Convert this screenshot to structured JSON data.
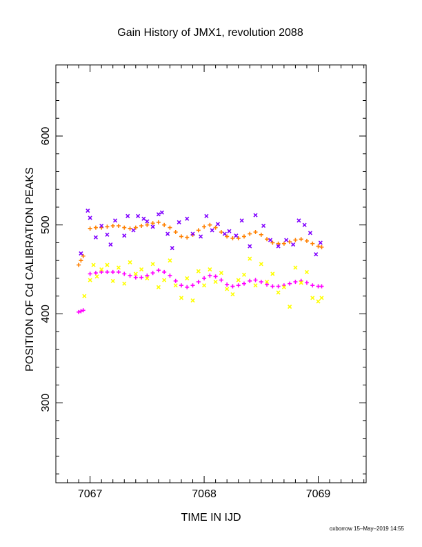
{
  "chart_data": {
    "type": "scatter",
    "title": "Gain History of JMX1, revolution 2088",
    "xlabel": "TIME IN IJD",
    "ylabel": "POSITION OF Cd CALIBRATION PEAKS",
    "xlim": [
      7066.7,
      7069.42
    ],
    "ylim": [
      210,
      680
    ],
    "xticks": [
      "7067",
      "7068",
      "7069"
    ],
    "yticks": [
      "300",
      "400",
      "500",
      "600"
    ],
    "grid": false,
    "legend": "none",
    "x_range": [
      6.91,
      7.05
    ],
    "series": [
      {
        "color": "#ff8000",
        "marker": "plus",
        "x": [
          7066.9,
          7066.92,
          7066.94,
          7067.0,
          7067.05,
          7067.1,
          7067.15,
          7067.2,
          7067.25,
          7067.3,
          7067.35,
          7067.4,
          7067.45,
          7067.5,
          7067.55,
          7067.6,
          7067.65,
          7067.7,
          7067.75,
          7067.8,
          7067.85,
          7067.9,
          7067.95,
          7068.0,
          7068.05,
          7068.1,
          7068.15,
          7068.2,
          7068.25,
          7068.3,
          7068.35,
          7068.4,
          7068.45,
          7068.5,
          7068.55,
          7068.6,
          7068.65,
          7068.7,
          7068.75,
          7068.8,
          7068.85,
          7068.9,
          7068.95,
          7069.0,
          7069.03
        ],
        "y": [
          455,
          460,
          465,
          496,
          497,
          497,
          498,
          499,
          499,
          497,
          496,
          497,
          499,
          500,
          502,
          503,
          500,
          497,
          492,
          487,
          486,
          489,
          494,
          498,
          500,
          497,
          492,
          487,
          485,
          485,
          487,
          490,
          492,
          489,
          484,
          480,
          479,
          479,
          481,
          483,
          484,
          482,
          479,
          476,
          475
        ]
      },
      {
        "color": "#ff00ff",
        "marker": "plus",
        "x": [
          7066.9,
          7066.92,
          7066.94,
          7067.0,
          7067.05,
          7067.1,
          7067.15,
          7067.2,
          7067.25,
          7067.3,
          7067.35,
          7067.4,
          7067.45,
          7067.5,
          7067.55,
          7067.6,
          7067.65,
          7067.7,
          7067.75,
          7067.8,
          7067.85,
          7067.9,
          7067.95,
          7068.0,
          7068.05,
          7068.1,
          7068.15,
          7068.2,
          7068.25,
          7068.3,
          7068.35,
          7068.4,
          7068.45,
          7068.5,
          7068.55,
          7068.6,
          7068.65,
          7068.7,
          7068.75,
          7068.8,
          7068.85,
          7068.9,
          7068.95,
          7069.0,
          7069.03
        ],
        "y": [
          402,
          403,
          404,
          445,
          446,
          447,
          447,
          447,
          447,
          445,
          443,
          441,
          441,
          443,
          446,
          449,
          447,
          443,
          437,
          432,
          430,
          432,
          436,
          440,
          443,
          442,
          438,
          433,
          431,
          432,
          434,
          437,
          438,
          436,
          433,
          431,
          431,
          432,
          434,
          436,
          437,
          435,
          432,
          431,
          431
        ]
      },
      {
        "color": "#8000ff",
        "marker": "cross",
        "x": [
          7066.92,
          7066.98,
          7067.0,
          7067.05,
          7067.1,
          7067.15,
          7067.18,
          7067.22,
          7067.3,
          7067.33,
          7067.38,
          7067.42,
          7067.47,
          7067.5,
          7067.55,
          7067.6,
          7067.63,
          7067.68,
          7067.72,
          7067.78,
          7067.85,
          7067.9,
          7067.97,
          7068.02,
          7068.07,
          7068.12,
          7068.18,
          7068.22,
          7068.28,
          7068.33,
          7068.4,
          7068.45,
          7068.52,
          7068.58,
          7068.65,
          7068.72,
          7068.78,
          7068.83,
          7068.88,
          7068.93,
          7068.98,
          7069.02
        ],
        "y": [
          468,
          516,
          508,
          486,
          499,
          489,
          478,
          505,
          488,
          510,
          494,
          510,
          507,
          504,
          498,
          512,
          514,
          490,
          474,
          503,
          507,
          490,
          487,
          510,
          494,
          501,
          490,
          493,
          488,
          505,
          476,
          511,
          499,
          483,
          476,
          483,
          478,
          505,
          500,
          491,
          467,
          480
        ]
      },
      {
        "color": "#ffff00",
        "marker": "cross",
        "x": [
          7066.95,
          7067.0,
          7067.03,
          7067.06,
          7067.1,
          7067.15,
          7067.2,
          7067.25,
          7067.3,
          7067.35,
          7067.4,
          7067.45,
          7067.5,
          7067.55,
          7067.6,
          7067.65,
          7067.7,
          7067.75,
          7067.8,
          7067.85,
          7067.9,
          7067.95,
          7068.0,
          7068.05,
          7068.1,
          7068.15,
          7068.2,
          7068.25,
          7068.3,
          7068.35,
          7068.4,
          7068.45,
          7068.5,
          7068.55,
          7068.6,
          7068.65,
          7068.7,
          7068.75,
          7068.8,
          7068.85,
          7068.9,
          7068.95,
          7069.0,
          7069.03
        ],
        "y": [
          420,
          438,
          455,
          442,
          450,
          455,
          437,
          452,
          434,
          458,
          445,
          450,
          440,
          456,
          430,
          438,
          460,
          432,
          418,
          440,
          415,
          448,
          432,
          450,
          436,
          446,
          428,
          422,
          438,
          444,
          462,
          432,
          456,
          436,
          445,
          424,
          430,
          408,
          452,
          435,
          447,
          418,
          414,
          418
        ]
      }
    ]
  },
  "footer": "oxborrow 15–May–2019 14:55"
}
